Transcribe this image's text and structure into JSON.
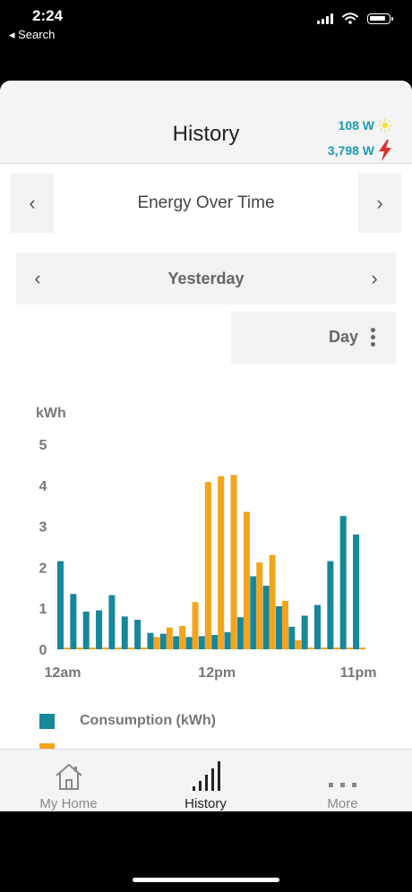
{
  "status_bar": {
    "time": "2:24",
    "back_label": "◂ Search"
  },
  "header": {
    "title": "History",
    "solar_power": "108 W",
    "grid_power": "3,798 W"
  },
  "graph_selector": {
    "title": "Energy Over Time"
  },
  "date_selector": {
    "label": "Yesterday"
  },
  "period_selector": {
    "label": "Day"
  },
  "chart_data": {
    "type": "bar",
    "ylabel": "kWh",
    "ylim": [
      0,
      5
    ],
    "yticks": [
      "0",
      "1",
      "2",
      "3",
      "4",
      "5"
    ],
    "xticks": [
      {
        "hour": 0,
        "label": "12am"
      },
      {
        "hour": 12,
        "label": "12pm"
      },
      {
        "hour": 23,
        "label": "11pm"
      }
    ],
    "series": [
      {
        "name": "Consumption (kWh)",
        "color": "#17879a",
        "values": [
          2.15,
          1.35,
          0.92,
          0.95,
          1.32,
          0.8,
          0.72,
          0.4,
          0.38,
          0.32,
          0.3,
          0.32,
          0.35,
          0.42,
          0.78,
          1.78,
          1.55,
          1.05,
          0.55,
          0.82,
          1.08,
          2.15,
          3.25,
          2.8
        ]
      },
      {
        "name": "",
        "color": "#f4a41c",
        "values": [
          0,
          0,
          0,
          0,
          0,
          0,
          0,
          0.3,
          0.53,
          0.57,
          1.15,
          4.08,
          4.22,
          4.25,
          3.35,
          2.12,
          2.3,
          1.18,
          0.22,
          0,
          0,
          0,
          0,
          0
        ]
      }
    ]
  },
  "legend": {
    "consumption_label": "Consumption (kWh)"
  },
  "tabs": [
    {
      "label": "My Home"
    },
    {
      "label": "History"
    },
    {
      "label": "More"
    }
  ],
  "colors": {
    "accent": "#1a9bb0",
    "consumption": "#17879a",
    "solar": "#f4a41c",
    "bolt": "#e03030"
  }
}
